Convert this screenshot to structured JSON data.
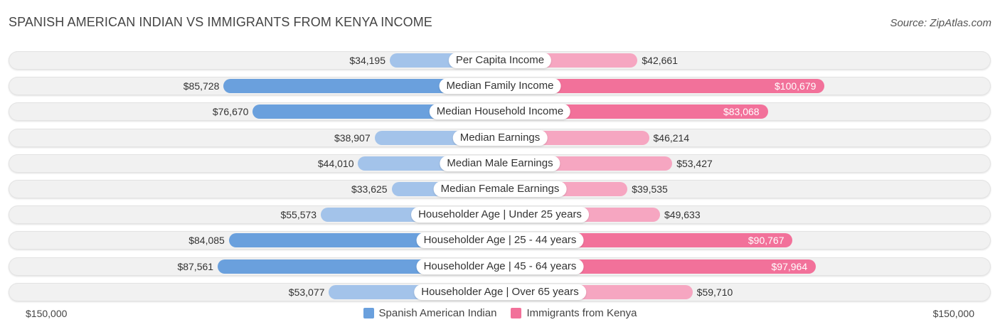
{
  "title": "SPANISH AMERICAN INDIAN VS IMMIGRANTS FROM KENYA INCOME",
  "source": "Source: ZipAtlas.com",
  "colors": {
    "left_strong": "#6aa0dd",
    "left_light": "#a3c3ea",
    "right_strong": "#f2719a",
    "right_light": "#f6a6c1"
  },
  "chart_data": {
    "type": "bar",
    "orientation": "horizontal-diverging",
    "max": 150000,
    "axis_left_label": "$150,000",
    "axis_right_label": "$150,000",
    "series": [
      {
        "name": "Spanish American Indian",
        "side": "left"
      },
      {
        "name": "Immigrants from Kenya",
        "side": "right"
      }
    ],
    "categories": [
      "Per Capita Income",
      "Median Family Income",
      "Median Household Income",
      "Median Earnings",
      "Median Male Earnings",
      "Median Female Earnings",
      "Householder Age | Under 25 years",
      "Householder Age | 25 - 44 years",
      "Householder Age | 45 - 64 years",
      "Householder Age | Over 65 years"
    ],
    "left_values": [
      34195,
      85728,
      76670,
      38907,
      44010,
      33625,
      55573,
      84085,
      87561,
      53077
    ],
    "left_labels": [
      "$34,195",
      "$85,728",
      "$76,670",
      "$38,907",
      "$44,010",
      "$33,625",
      "$55,573",
      "$84,085",
      "$87,561",
      "$53,077"
    ],
    "right_values": [
      42661,
      100679,
      83068,
      46214,
      53427,
      39535,
      49633,
      90767,
      97964,
      59710
    ],
    "right_labels": [
      "$42,661",
      "$100,679",
      "$83,068",
      "$46,214",
      "$53,427",
      "$39,535",
      "$49,633",
      "$90,767",
      "$97,964",
      "$59,710"
    ]
  }
}
